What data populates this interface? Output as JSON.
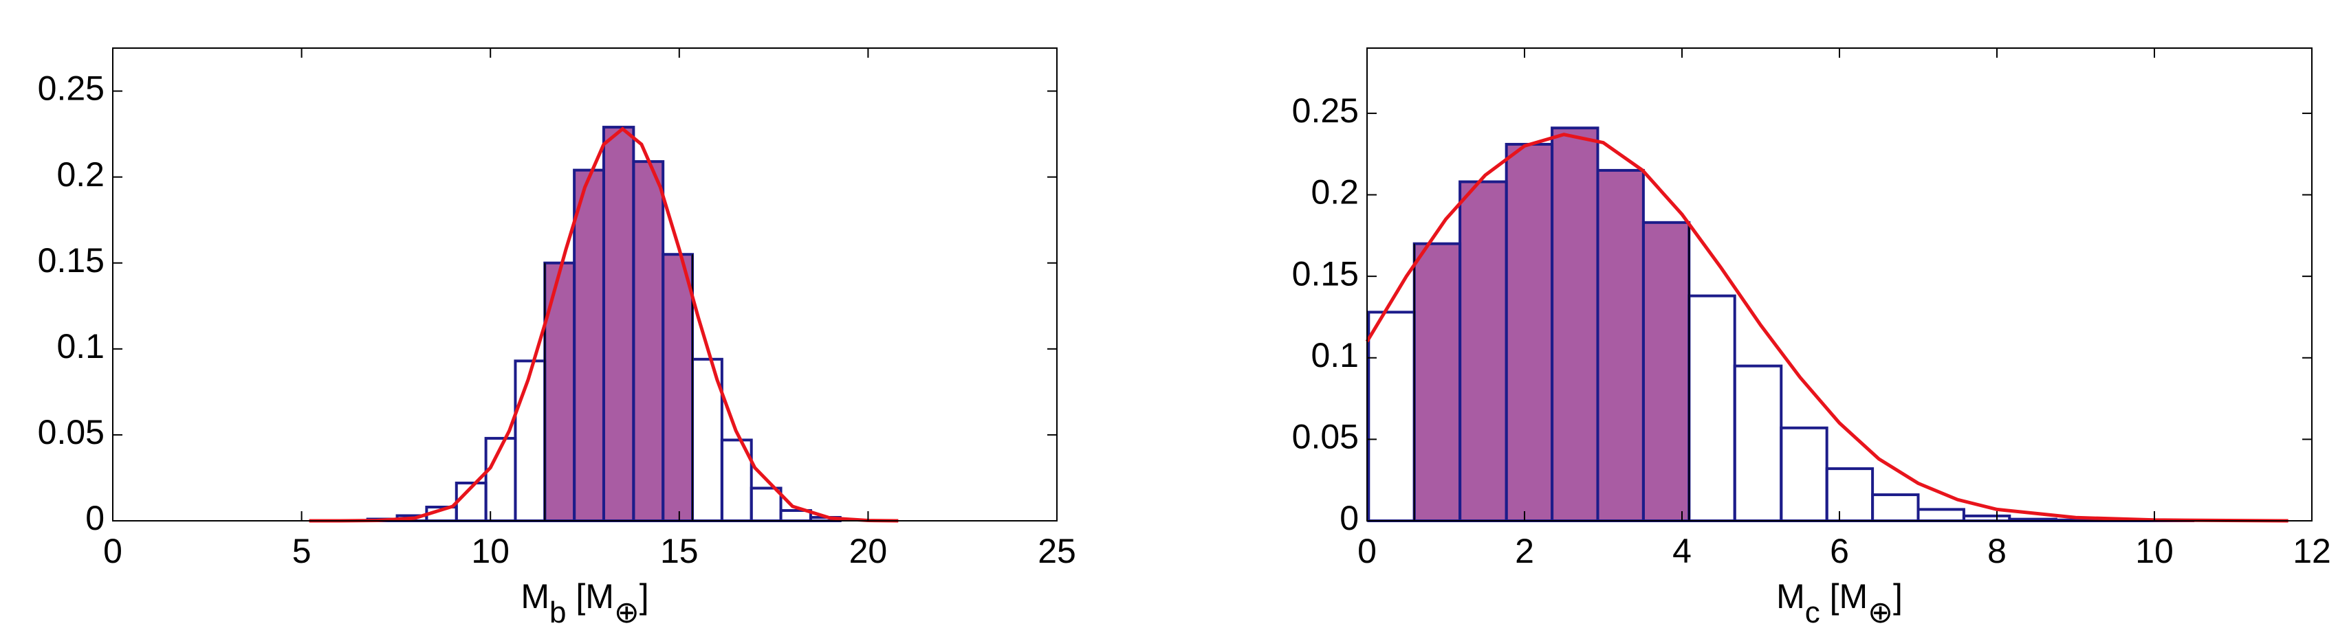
{
  "chart_data": [
    {
      "type": "histogram",
      "xlabel": [
        {
          "text": "M"
        },
        {
          "text": "b",
          "sub": true
        },
        {
          "text": " [M"
        },
        {
          "text": "⊕",
          "sub": true
        },
        {
          "text": "]"
        }
      ],
      "bins": [
        6.75,
        7.53,
        8.31,
        9.1,
        9.88,
        10.66,
        11.44,
        12.22,
        13.0,
        13.79,
        14.57,
        15.35,
        16.13,
        16.91,
        17.69,
        18.48,
        19.26
      ],
      "counts": [
        0.001,
        0.003,
        0.008,
        0.022,
        0.048,
        0.093,
        0.15,
        0.204,
        0.229,
        0.209,
        0.155,
        0.094,
        0.047,
        0.019,
        0.006,
        0.002
      ],
      "color": "#1c1c8a",
      "shade_color": "#a95ca3",
      "shaded_range": [
        11.44,
        15.35
      ],
      "curve": {
        "color": "#e8141c",
        "x": [
          5.2,
          6,
          7,
          8,
          9,
          10,
          10.5,
          11,
          11.5,
          12,
          12.5,
          13,
          13.5,
          14,
          14.5,
          15,
          15.5,
          16,
          16.5,
          17,
          18,
          19,
          20,
          20.8
        ],
        "y": [
          0,
          0,
          0.0002,
          0.0016,
          0.0084,
          0.0309,
          0.0524,
          0.0822,
          0.1186,
          0.158,
          0.194,
          0.219,
          0.228,
          0.219,
          0.194,
          0.158,
          0.1186,
          0.0822,
          0.0524,
          0.0309,
          0.0084,
          0.0016,
          0.0002,
          0
        ]
      },
      "xlim": [
        0,
        25
      ],
      "xticks": [
        0,
        5,
        10,
        15,
        20,
        25
      ],
      "ylim": [
        0,
        0.275
      ],
      "yticks": [
        0,
        0.05,
        0.1,
        0.15,
        0.2,
        0.25
      ]
    },
    {
      "type": "histogram",
      "xlabel": [
        {
          "text": "M"
        },
        {
          "text": "c",
          "sub": true
        },
        {
          "text": " [M"
        },
        {
          "text": "⊕",
          "sub": true
        },
        {
          "text": "]"
        }
      ],
      "bins": [
        0.02,
        0.6,
        1.18,
        1.77,
        2.35,
        2.93,
        3.51,
        4.09,
        4.67,
        5.26,
        5.84,
        6.42,
        7.0,
        7.58,
        8.16,
        8.75,
        9.33,
        9.91,
        10.49
      ],
      "counts": [
        0.128,
        0.17,
        0.208,
        0.231,
        0.241,
        0.215,
        0.183,
        0.138,
        0.095,
        0.057,
        0.032,
        0.016,
        0.007,
        0.003,
        0.001,
        0.0005,
        0.0002,
        0.0001
      ],
      "color": "#1c1c8a",
      "shade_color": "#a95ca3",
      "shaded_range": [
        0.6,
        4.09
      ],
      "curve": {
        "color": "#e8141c",
        "x": [
          0,
          0.5,
          1,
          1.5,
          2,
          2.5,
          3,
          3.5,
          4,
          4.5,
          5,
          5.5,
          6,
          6.5,
          7,
          7.5,
          8,
          9,
          10,
          11.7
        ],
        "y": [
          0.11,
          0.15,
          0.185,
          0.212,
          0.23,
          0.237,
          0.232,
          0.215,
          0.188,
          0.155,
          0.12,
          0.088,
          0.06,
          0.038,
          0.023,
          0.013,
          0.007,
          0.002,
          0.0005,
          0
        ]
      },
      "xlim": [
        0,
        12
      ],
      "xticks": [
        0,
        2,
        4,
        6,
        8,
        10,
        12
      ],
      "ylim": [
        0,
        0.29
      ],
      "yticks": [
        0,
        0.05,
        0.1,
        0.15,
        0.2,
        0.25
      ]
    }
  ]
}
